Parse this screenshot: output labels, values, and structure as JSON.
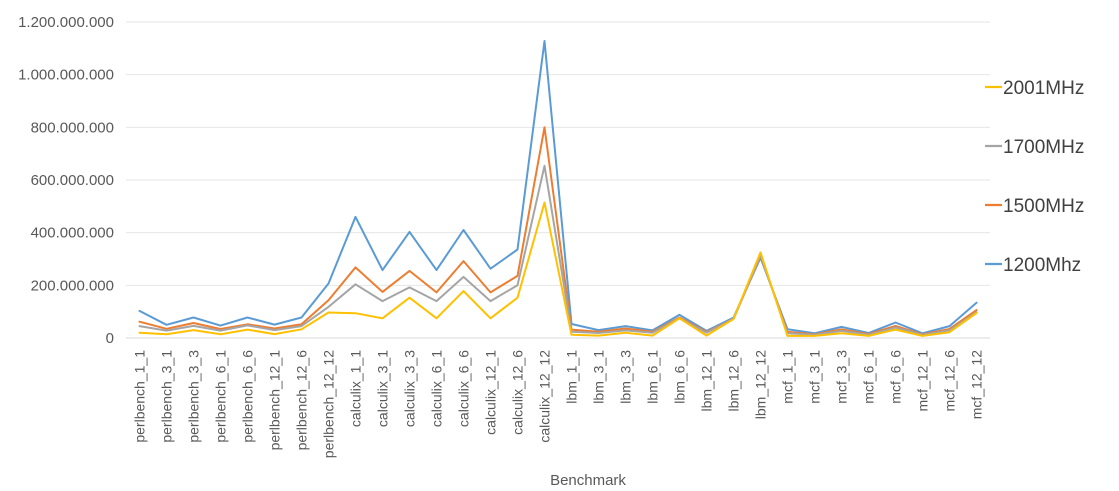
{
  "chart_data": {
    "type": "line",
    "title": "",
    "xlabel": "Benchmark",
    "ylabel": "",
    "ylim": [
      0,
      1200000000
    ],
    "y_ticks": [
      "0",
      "200.000.000",
      "400.000.000",
      "600.000.000",
      "800.000.000",
      "1.000.000.000",
      "1.200.000.000"
    ],
    "grid": "horizontal",
    "legend_position": "right",
    "categories": [
      "perlbench_1_1",
      "perlbench_3_1",
      "perlbench_3_3",
      "perlbench_6_1",
      "perlbench_6_6",
      "perlbench_12_1",
      "perlbench_12_6",
      "perlbench_12_12",
      "calculix_1_1",
      "calculix_3_1",
      "calculix_3_3",
      "calculix_6_1",
      "calculix_6_6",
      "calculix_12_1",
      "calculix_12_6",
      "calculix_12_12",
      "lbm_1_1",
      "lbm_3_1",
      "lbm_3_3",
      "lbm_6_1",
      "lbm_6_6",
      "lbm_12_1",
      "lbm_12_6",
      "lbm_12_12",
      "mcf_1_1",
      "mcf_3_1",
      "mcf_3_3",
      "mcf_6_1",
      "mcf_6_6",
      "mcf_12_1",
      "mcf_12_6",
      "mcf_12_12"
    ],
    "series": [
      {
        "name": "1200Mhz",
        "color": "#5B9BD5",
        "values": [
          103000000,
          50000000,
          78000000,
          47000000,
          78000000,
          51000000,
          78000000,
          207000000,
          460000000,
          258000000,
          403000000,
          258000000,
          410000000,
          263000000,
          336000000,
          1128000000,
          53000000,
          30000000,
          45000000,
          29000000,
          88000000,
          27000000,
          77000000,
          305000000,
          33000000,
          18000000,
          42000000,
          19000000,
          59000000,
          18000000,
          45000000,
          134000000
        ]
      },
      {
        "name": "1500MHz",
        "color": "#ED7D31",
        "values": [
          62000000,
          35000000,
          57000000,
          34000000,
          52000000,
          36000000,
          52000000,
          143000000,
          268000000,
          175000000,
          255000000,
          173000000,
          292000000,
          173000000,
          236000000,
          800000000,
          32000000,
          24000000,
          36000000,
          24000000,
          78000000,
          23000000,
          72000000,
          312000000,
          23000000,
          14000000,
          33000000,
          15000000,
          46000000,
          14000000,
          34000000,
          106000000
        ]
      },
      {
        "name": "1700MHz",
        "color": "#A5A5A5",
        "values": [
          45000000,
          28000000,
          46000000,
          28000000,
          48000000,
          30000000,
          45000000,
          118000000,
          204000000,
          140000000,
          192000000,
          140000000,
          232000000,
          140000000,
          200000000,
          654000000,
          24000000,
          19000000,
          29000000,
          20000000,
          75000000,
          20000000,
          72000000,
          315000000,
          18000000,
          12000000,
          27000000,
          12000000,
          40000000,
          12000000,
          29000000,
          98000000
        ]
      },
      {
        "name": "2001MHz",
        "color": "#FFC000",
        "values": [
          20000000,
          14000000,
          30000000,
          14000000,
          32000000,
          15000000,
          33000000,
          97000000,
          94000000,
          75000000,
          153000000,
          75000000,
          178000000,
          75000000,
          153000000,
          514000000,
          12000000,
          9000000,
          20000000,
          9000000,
          75000000,
          9000000,
          72000000,
          325000000,
          8000000,
          8000000,
          18000000,
          8000000,
          32000000,
          8000000,
          22000000,
          95000000
        ]
      }
    ],
    "legend_order": [
      "2001MHz",
      "1700MHz",
      "1500MHz",
      "1200Mhz"
    ]
  }
}
